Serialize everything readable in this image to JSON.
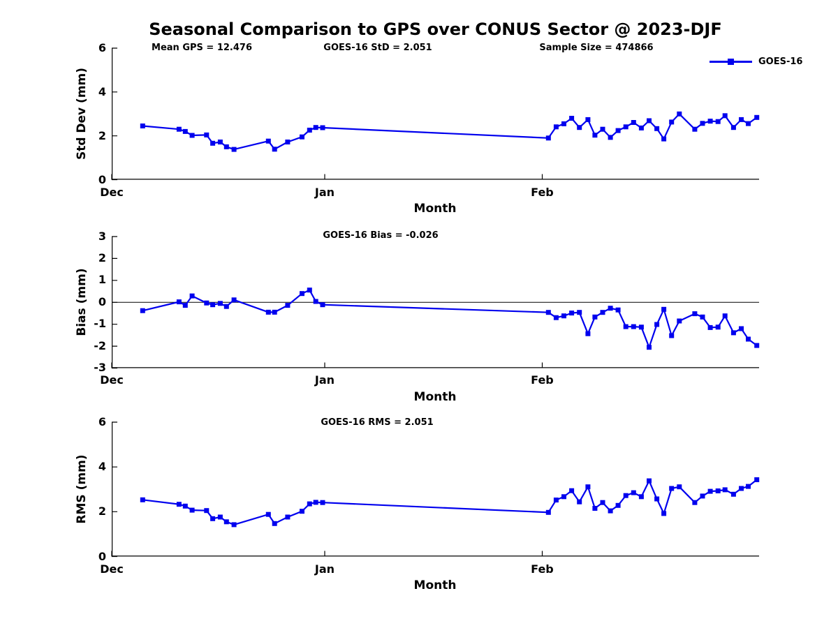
{
  "title": "Seasonal Comparison to GPS over CONUS Sector @ 2023-DJF",
  "header_stats": {
    "mean_gps": "Mean GPS = 12.476",
    "goes16_std": "GOES-16 StD = 2.051",
    "sample_size": "Sample Size = 474866"
  },
  "legend": {
    "series_label": "GOES-16",
    "line_color": "#0000EE",
    "marker": "filled-square"
  },
  "chart_data": [
    {
      "id": "std-dev",
      "type": "line",
      "title": "",
      "ylabel": "Std Dev (mm)",
      "xlabel": "Month",
      "ylim": [
        0,
        6
      ],
      "yticks": [
        6,
        4,
        2,
        0
      ],
      "xticks": [
        {
          "day": 0,
          "label": "Dec"
        },
        {
          "day": 31,
          "label": "Jan"
        },
        {
          "day": 62,
          "label": "Feb"
        }
      ],
      "x_unit": "days since Dec 1 (DJF 2023 season)",
      "x_domain": [
        0,
        90
      ],
      "grid": false,
      "zero_line": false,
      "legend_position": "top-right-outside",
      "series": [
        {
          "name": "GOES-16",
          "x": [
            4.5,
            9.8,
            10.7,
            11.7,
            13.8,
            14.7,
            15.8,
            16.7,
            17.8,
            22.8,
            23.7,
            25.6,
            27.7,
            28.8,
            29.7,
            30.7,
            62.8,
            63.8,
            64.8,
            65.8,
            66.8,
            67.9,
            68.8,
            69.8,
            70.8,
            71.8,
            72.8,
            73.8,
            74.8,
            75.8,
            76.8,
            77.7,
            78.7,
            79.7,
            81.7,
            82.7,
            83.7,
            84.7,
            85.6,
            86.7,
            87.7,
            88.6,
            89.7
          ],
          "y": [
            2.45,
            2.3,
            2.2,
            2.02,
            2.04,
            1.66,
            1.72,
            1.5,
            1.38,
            1.76,
            1.39,
            1.72,
            1.95,
            2.26,
            2.38,
            2.37,
            1.9,
            2.41,
            2.55,
            2.8,
            2.38,
            2.74,
            2.03,
            2.3,
            1.93,
            2.24,
            2.41,
            2.61,
            2.36,
            2.69,
            2.33,
            1.86,
            2.63,
            3.0,
            2.3,
            2.57,
            2.67,
            2.65,
            2.92,
            2.38,
            2.74,
            2.56,
            2.84
          ]
        }
      ]
    },
    {
      "id": "bias",
      "type": "line",
      "annotation": "GOES-16 Bias = -0.026",
      "ylabel": "Bias (mm)",
      "xlabel": "Month",
      "ylim": [
        -3,
        3
      ],
      "yticks": [
        3,
        2,
        1,
        0,
        -1,
        -2,
        -3
      ],
      "xticks": [
        {
          "day": 0,
          "label": "Dec"
        },
        {
          "day": 31,
          "label": "Jan"
        },
        {
          "day": 62,
          "label": "Feb"
        }
      ],
      "x_unit": "days since Dec 1 (DJF 2023 season)",
      "x_domain": [
        0,
        90
      ],
      "grid": false,
      "zero_line": true,
      "series": [
        {
          "name": "GOES-16",
          "x": [
            4.5,
            9.8,
            10.7,
            11.7,
            13.8,
            14.7,
            15.8,
            16.7,
            17.8,
            22.8,
            23.7,
            25.6,
            27.7,
            28.8,
            29.7,
            30.7,
            62.8,
            63.8,
            64.8,
            65.8,
            66.8,
            67.9,
            68.8,
            69.8,
            70.8,
            71.8,
            72.8,
            73.8,
            74.8,
            75.8,
            76.8,
            77.7,
            78.7,
            79.7,
            81.7,
            82.7,
            83.7,
            84.7,
            85.6,
            86.7,
            87.7,
            88.6,
            89.7
          ],
          "y": [
            -0.38,
            0.02,
            -0.14,
            0.29,
            -0.03,
            -0.11,
            -0.05,
            -0.19,
            0.11,
            -0.45,
            -0.45,
            -0.14,
            0.4,
            0.56,
            0.04,
            -0.11,
            -0.46,
            -0.7,
            -0.62,
            -0.49,
            -0.46,
            -1.43,
            -0.67,
            -0.46,
            -0.27,
            -0.35,
            -1.11,
            -1.11,
            -1.13,
            -2.05,
            -1.01,
            -0.32,
            -1.52,
            -0.85,
            -0.52,
            -0.67,
            -1.15,
            -1.13,
            -0.62,
            -1.39,
            -1.2,
            -1.68,
            -1.97
          ]
        }
      ]
    },
    {
      "id": "rms",
      "type": "line",
      "annotation": "GOES-16 RMS = 2.051",
      "ylabel": "RMS (mm)",
      "xlabel": "Month",
      "ylim": [
        0,
        6
      ],
      "yticks": [
        6,
        4,
        2,
        0
      ],
      "xticks": [
        {
          "day": 0,
          "label": "Dec"
        },
        {
          "day": 31,
          "label": "Jan"
        },
        {
          "day": 62,
          "label": "Feb"
        }
      ],
      "x_unit": "days since Dec 1 (DJF 2023 season)",
      "x_domain": [
        0,
        90
      ],
      "grid": false,
      "zero_line": false,
      "series": [
        {
          "name": "GOES-16",
          "x": [
            4.5,
            9.8,
            10.7,
            11.7,
            13.8,
            14.7,
            15.8,
            16.7,
            17.8,
            22.8,
            23.7,
            25.6,
            27.7,
            28.8,
            29.7,
            30.7,
            62.8,
            63.8,
            64.8,
            65.8,
            66.8,
            67.9,
            68.8,
            69.8,
            70.8,
            71.8,
            72.8,
            73.8,
            74.8,
            75.8,
            76.8,
            77.7,
            78.7,
            79.7,
            81.7,
            82.7,
            83.7,
            84.7,
            85.6,
            86.7,
            87.7,
            88.6,
            89.7
          ],
          "y": [
            2.53,
            2.33,
            2.25,
            2.07,
            2.05,
            1.69,
            1.76,
            1.55,
            1.42,
            1.88,
            1.47,
            1.76,
            2.02,
            2.35,
            2.42,
            2.41,
            1.97,
            2.52,
            2.67,
            2.94,
            2.44,
            3.11,
            2.15,
            2.41,
            2.04,
            2.28,
            2.72,
            2.85,
            2.67,
            3.38,
            2.57,
            1.92,
            3.04,
            3.11,
            2.41,
            2.7,
            2.91,
            2.93,
            2.98,
            2.78,
            3.04,
            3.13,
            3.43
          ]
        }
      ]
    }
  ]
}
